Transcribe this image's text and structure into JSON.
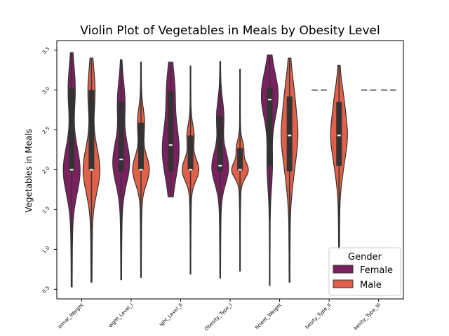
{
  "chart_data": {
    "type": "violin",
    "title": "Violin Plot of Vegetables in Meals by Obesity Level",
    "xlabel": "",
    "ylabel": "Vegetables in Meals",
    "ylim": [
      0.38,
      3.62
    ],
    "yticks": [
      "0.5",
      "1.0",
      "1.5",
      "2.0",
      "2.5",
      "3.0",
      "3.5"
    ],
    "categories": [
      "Normal_Weight",
      "Overweight_Level_I",
      "Overweight_Level_II",
      "Obesity_Type_I",
      "Insufficient_Weight",
      "Obesity_Type_II",
      "Obesity_Type_III"
    ],
    "xtick_labels": [
      "ormal_Weight",
      "eight_Level_I",
      "ight_Level_II",
      "Obesity_Type_I",
      "ficient_Weight",
      "besity_Type_II",
      "besity_Type_III"
    ],
    "legend": {
      "title": "Gender",
      "position": "lower right"
    },
    "series": [
      {
        "name": "Female",
        "color": "#7b2160",
        "stats": [
          {
            "min": 0.53,
            "q1": 1.98,
            "median": 2.0,
            "q3": 3.02,
            "max": 3.47
          },
          {
            "min": 0.62,
            "q1": 1.98,
            "median": 2.13,
            "q3": 2.86,
            "max": 3.38
          },
          {
            "min": 1.66,
            "q1": 1.98,
            "median": 2.31,
            "q3": 2.99,
            "max": 3.35
          },
          {
            "min": 0.64,
            "q1": 1.98,
            "median": 2.05,
            "q3": 2.67,
            "max": 3.36
          },
          {
            "min": 0.55,
            "q1": 2.05,
            "median": 2.88,
            "q3": 3.03,
            "max": 3.44
          },
          {
            "min": 3.0,
            "q1": 3.0,
            "median": 3.0,
            "q3": 3.0,
            "max": 3.0
          },
          {
            "min": 3.0,
            "q1": 3.0,
            "median": 3.0,
            "q3": 3.0,
            "max": 3.0
          }
        ]
      },
      {
        "name": "Male",
        "color": "#e0604a",
        "stats": [
          {
            "min": 0.59,
            "q1": 2.0,
            "median": 2.0,
            "q3": 3.0,
            "max": 3.4
          },
          {
            "min": 0.65,
            "q1": 2.0,
            "median": 2.0,
            "q3": 2.59,
            "max": 3.35
          },
          {
            "min": 0.69,
            "q1": 2.0,
            "median": 2.0,
            "q3": 2.43,
            "max": 3.3
          },
          {
            "min": 0.73,
            "q1": 1.99,
            "median": 2.0,
            "q3": 2.27,
            "max": 3.26
          },
          {
            "min": 0.59,
            "q1": 1.98,
            "median": 2.43,
            "q3": 2.92,
            "max": 3.4
          },
          {
            "min": 1.0,
            "q1": 2.05,
            "median": 2.43,
            "q3": 2.85,
            "max": 3.31
          },
          {
            "min": 3.0,
            "q1": 3.0,
            "median": 3.0,
            "q3": 3.0,
            "max": 3.0
          }
        ]
      }
    ]
  }
}
